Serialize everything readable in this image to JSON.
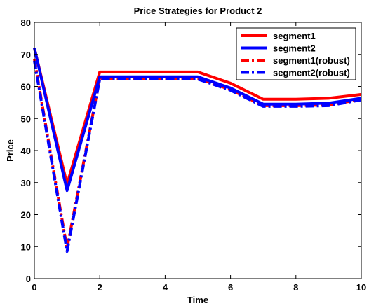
{
  "chart_data": {
    "type": "line",
    "title": "Price Strategies for Product 2",
    "xlabel": "Time",
    "ylabel": "Price",
    "xlim": [
      0,
      10
    ],
    "ylim": [
      0,
      80
    ],
    "xticks": [
      0,
      2,
      4,
      6,
      8,
      10
    ],
    "yticks": [
      0,
      10,
      20,
      30,
      40,
      50,
      60,
      70,
      80
    ],
    "grid": false,
    "legend_position": "top-right",
    "x": [
      0,
      1,
      2,
      3,
      4,
      5,
      6,
      7,
      8,
      9,
      10
    ],
    "series": [
      {
        "name": "segment1",
        "color": "#ff0000",
        "style": "solid",
        "values": [
          72,
          29.5,
          64.5,
          64.5,
          64.5,
          64.5,
          61,
          56,
          56,
          56.3,
          57.5
        ]
      },
      {
        "name": "segment2",
        "color": "#0000ff",
        "style": "solid",
        "values": [
          72,
          27.5,
          63,
          63,
          63,
          63,
          59.5,
          54.5,
          54.5,
          54.8,
          56.3
        ]
      },
      {
        "name": "segment1(robust)",
        "color": "#ff0000",
        "style": "dashdot",
        "values": [
          68.5,
          9.5,
          62.5,
          62.5,
          62.5,
          62.5,
          59,
          54,
          54,
          54.2,
          56
        ]
      },
      {
        "name": "segment2(robust)",
        "color": "#0000ff",
        "style": "dashdot",
        "values": [
          68,
          8.5,
          62.3,
          62.3,
          62.3,
          62.3,
          58.8,
          53.8,
          53.8,
          54,
          55.8
        ]
      }
    ]
  }
}
